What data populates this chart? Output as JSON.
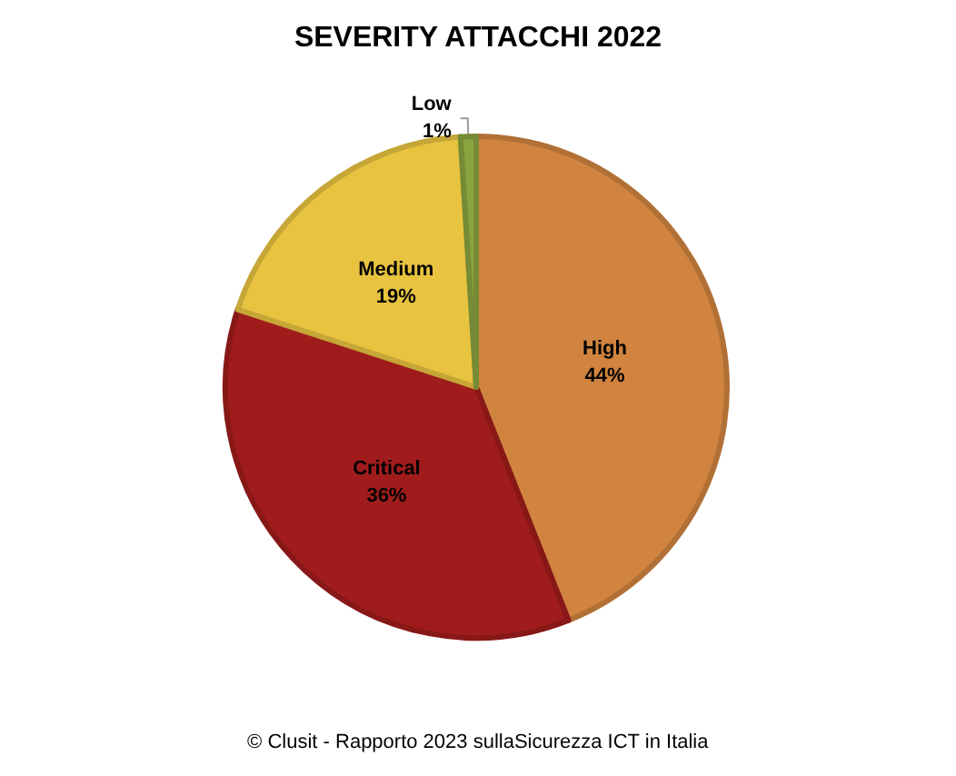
{
  "chart_data": {
    "type": "pie",
    "title": "SEVERITY ATTACCHI 2022",
    "categories": [
      "High",
      "Critical",
      "Medium",
      "Low"
    ],
    "values": [
      44,
      36,
      19,
      1
    ],
    "value_labels": [
      "44%",
      "36%",
      "19%",
      "1%"
    ],
    "colors": [
      "#d0843f",
      "#a01c1c",
      "#e8c340",
      "#8aa33e"
    ],
    "legend": false,
    "annotations": [
      "© Clusit - Rapporto 2023 sullaSicurezza ICT in Italia"
    ]
  }
}
